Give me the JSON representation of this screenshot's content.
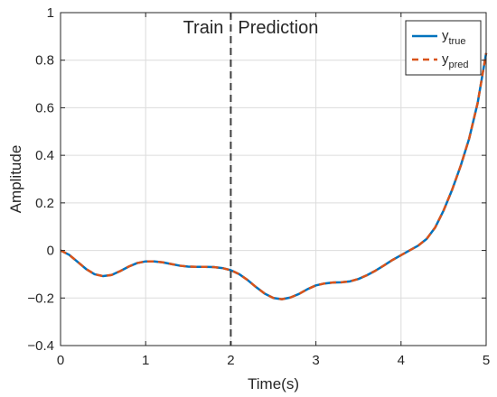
{
  "colors": {
    "true_line": "#0072BD",
    "pred_line": "#D95319",
    "divider": "#404040",
    "grid": "#dcdcdc",
    "axis": "#262626"
  },
  "chart_data": {
    "type": "line",
    "xlabel": "Time(s)",
    "ylabel": "Amplitude",
    "xlim": [
      0,
      5
    ],
    "ylim": [
      -0.4,
      1
    ],
    "xticks": [
      0,
      1,
      2,
      3,
      4,
      5
    ],
    "xtick_labels": [
      "0",
      "1",
      "2",
      "3",
      "4",
      "5"
    ],
    "yticks": [
      -0.4,
      -0.2,
      0,
      0.2,
      0.4,
      0.6,
      0.8,
      1
    ],
    "ytick_labels": [
      "−0.4",
      "−0.2",
      "0",
      "0.2",
      "0.4",
      "0.6",
      "0.8",
      "1"
    ],
    "grid": true,
    "legend_position": "top-right",
    "divider_x": 2,
    "annotations": {
      "left": "Train",
      "right": "Prediction"
    },
    "x": [
      0,
      0.1,
      0.2,
      0.3,
      0.4,
      0.5,
      0.6,
      0.7,
      0.8,
      0.9,
      1.0,
      1.1,
      1.2,
      1.3,
      1.4,
      1.5,
      1.6,
      1.7,
      1.8,
      1.9,
      2.0,
      2.1,
      2.2,
      2.3,
      2.4,
      2.5,
      2.6,
      2.7,
      2.8,
      2.9,
      3.0,
      3.1,
      3.2,
      3.3,
      3.4,
      3.5,
      3.6,
      3.7,
      3.8,
      3.9,
      4.0,
      4.1,
      4.2,
      4.3,
      4.4,
      4.5,
      4.6,
      4.7,
      4.8,
      4.9,
      5.0
    ],
    "series": [
      {
        "name": "y_true",
        "legend_main": "y",
        "legend_sub": "true",
        "style": "solid",
        "values": [
          0,
          -0.018,
          -0.048,
          -0.078,
          -0.1,
          -0.108,
          -0.103,
          -0.087,
          -0.068,
          -0.053,
          -0.046,
          -0.046,
          -0.05,
          -0.057,
          -0.064,
          -0.068,
          -0.069,
          -0.069,
          -0.07,
          -0.074,
          -0.083,
          -0.1,
          -0.125,
          -0.155,
          -0.182,
          -0.2,
          -0.205,
          -0.198,
          -0.183,
          -0.163,
          -0.147,
          -0.139,
          -0.135,
          -0.134,
          -0.13,
          -0.12,
          -0.104,
          -0.085,
          -0.063,
          -0.04,
          -0.02,
          0.0,
          0.02,
          0.048,
          0.096,
          0.168,
          0.255,
          0.355,
          0.47,
          0.62,
          0.83
        ]
      },
      {
        "name": "y_pred",
        "legend_main": "y",
        "legend_sub": "pred",
        "style": "dashed",
        "values": [
          0,
          -0.018,
          -0.048,
          -0.078,
          -0.1,
          -0.108,
          -0.103,
          -0.087,
          -0.068,
          -0.053,
          -0.046,
          -0.046,
          -0.05,
          -0.057,
          -0.064,
          -0.068,
          -0.069,
          -0.069,
          -0.07,
          -0.074,
          -0.083,
          -0.1,
          -0.125,
          -0.155,
          -0.182,
          -0.2,
          -0.205,
          -0.198,
          -0.183,
          -0.163,
          -0.147,
          -0.139,
          -0.135,
          -0.134,
          -0.13,
          -0.12,
          -0.104,
          -0.085,
          -0.063,
          -0.04,
          -0.02,
          0.0,
          0.02,
          0.048,
          0.096,
          0.168,
          0.255,
          0.355,
          0.47,
          0.62,
          0.83
        ]
      }
    ]
  }
}
